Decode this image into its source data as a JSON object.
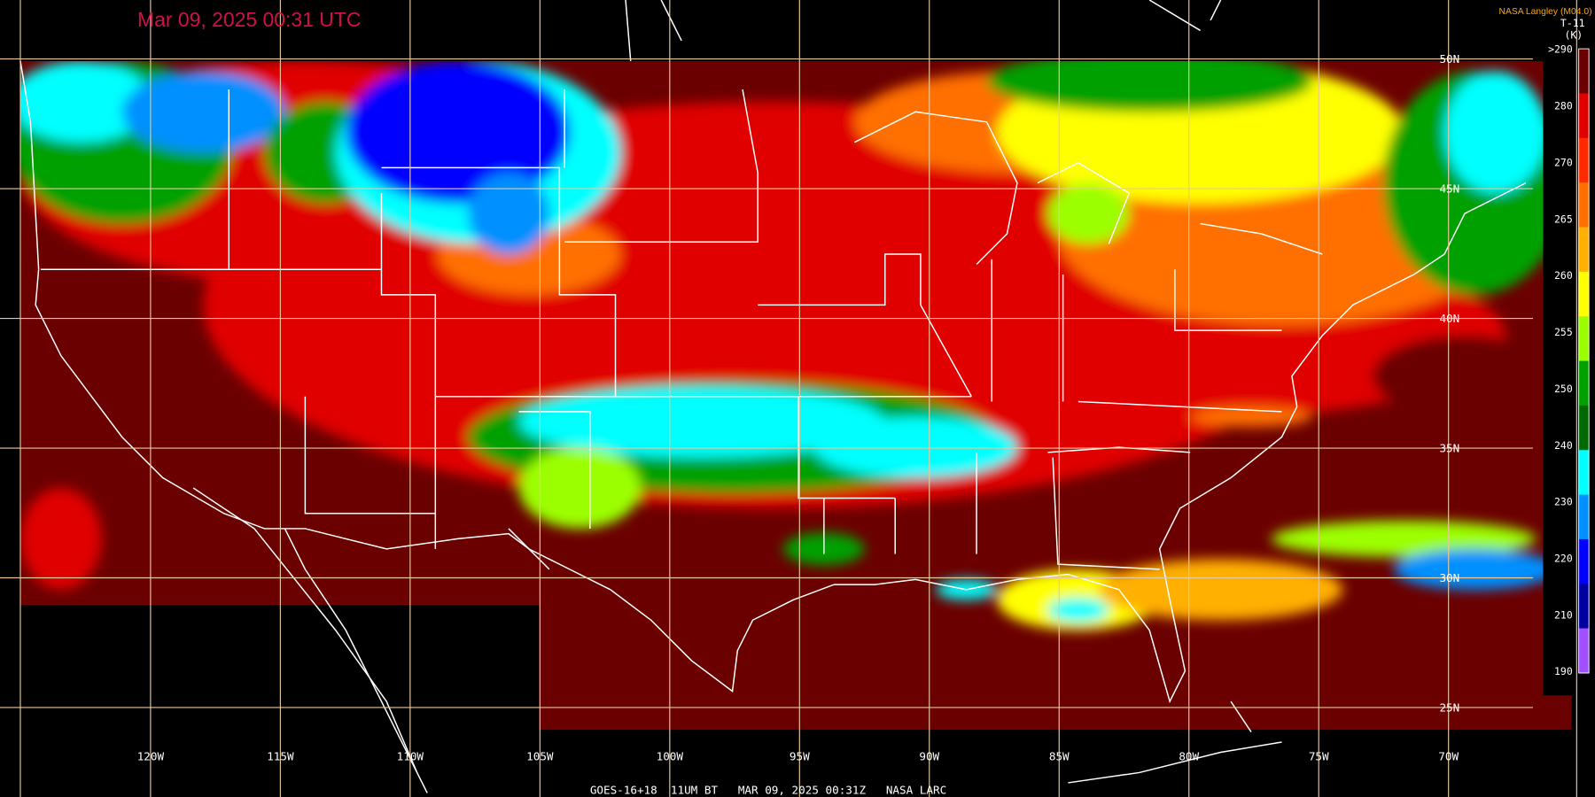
{
  "header": {
    "title": "Mar 09, 2025 00:31 UTC",
    "source": "NASA Langley (M04.0)",
    "channel": "T-11",
    "unit": "(K)"
  },
  "footer": {
    "caption": "GOES-16+18  11UM BT   MAR 09, 2025 00:31Z   NASA LARC"
  },
  "longitude_labels": [
    "120W",
    "115W",
    "110W",
    "105W",
    "100W",
    "95W",
    "90W",
    "85W",
    "80W",
    "75W",
    "70W"
  ],
  "latitude_labels": [
    "50N",
    "45N",
    "40N",
    "35N",
    "30N",
    "25N"
  ],
  "colorbar": {
    "labels": [
      ">290",
      "280",
      "270",
      "265",
      "260",
      "255",
      "250",
      "240",
      "230",
      "220",
      "210",
      "190"
    ],
    "colors": [
      "#6b0000",
      "#e00000",
      "#ff2a00",
      "#ff7000",
      "#ffb000",
      "#ffff00",
      "#9cff00",
      "#00a000",
      "#006a00",
      "#00ffff",
      "#0090ff",
      "#0000ff",
      "#0000a0",
      "#a050ff"
    ]
  }
}
